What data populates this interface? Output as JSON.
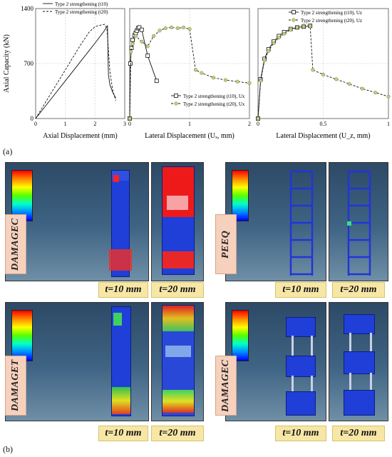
{
  "fig_labels": {
    "a": "(a)",
    "b": "(b)"
  },
  "fea_labels": {
    "damagec": "DAMAGEC",
    "peeq": "PEEQ",
    "damaget": "DAMAGET",
    "damagec2": "DAMAGEC"
  },
  "thickness_labels": {
    "t10": "t=10 mm",
    "t20": "t=20 mm"
  },
  "colors": {
    "frame": "#4a5a9c",
    "fea_bg": "#3f6484",
    "label_bg": "#f6d1be",
    "t_bg": "#f7e7a6",
    "marker_yellow": "#c9d36a"
  },
  "chart_data": [
    {
      "type": "line",
      "ylabel": "Axial Capacity (kN)",
      "xlabel": "Axial Displacement (mm)",
      "xlim": [
        0,
        3
      ],
      "ylim": [
        0,
        1400
      ],
      "xticks": [
        "0",
        "1",
        "2",
        "3"
      ],
      "yticks": [
        "0",
        "700",
        "1400"
      ],
      "series": [
        {
          "name": "Type 2 strengthening (t10)",
          "style": "solid",
          "x": [
            0,
            0.5,
            1.0,
            1.5,
            2.0,
            2.3,
            2.42,
            2.45,
            2.5,
            2.6,
            2.7
          ],
          "y": [
            0,
            240,
            480,
            720,
            960,
            1110,
            1180,
            560,
            430,
            330,
            260
          ]
        },
        {
          "name": "Type 2 strengthening (t20)",
          "style": "dashed",
          "x": [
            0,
            0.5,
            1.0,
            1.5,
            1.8,
            2.0,
            2.2,
            2.32,
            2.4,
            2.5,
            2.6,
            2.7
          ],
          "y": [
            0,
            310,
            620,
            930,
            1100,
            1170,
            1190,
            1200,
            1150,
            600,
            350,
            230
          ]
        }
      ]
    },
    {
      "type": "line",
      "xlabel": "Lateral Displacement (Uₓ, mm)",
      "xlim": [
        0,
        2
      ],
      "ylim": [
        0,
        1400
      ],
      "xticks": [
        "0",
        "1",
        "2"
      ],
      "series": [
        {
          "name": "Type 2 strengthening (t10), Ux",
          "marker": "square",
          "x": [
            0,
            0.01,
            0.03,
            0.05,
            0.08,
            0.1,
            0.12,
            0.14,
            0.16,
            0.2,
            0.3,
            0.45
          ],
          "y": [
            0,
            700,
            900,
            1000,
            1060,
            1090,
            1120,
            1150,
            1160,
            1130,
            800,
            480
          ]
        },
        {
          "name": "Type 2 strengthening (t20), Ux",
          "marker": "circle-yellow",
          "x": [
            0,
            0.02,
            0.05,
            0.1,
            0.2,
            0.3,
            0.4,
            0.5,
            0.6,
            0.7,
            0.8,
            0.9,
            1.0,
            1.1,
            1.2,
            1.4,
            1.6,
            1.8,
            2.0
          ],
          "y": [
            0,
            850,
            950,
            1050,
            980,
            920,
            1050,
            1120,
            1150,
            1160,
            1150,
            1160,
            1140,
            620,
            580,
            520,
            490,
            470,
            450
          ]
        }
      ]
    },
    {
      "type": "line",
      "xlabel": "Lateral Displacement (U_z, mm)",
      "xlim": [
        0,
        1
      ],
      "ylim": [
        0,
        1400
      ],
      "xticks": [
        "0",
        "0.5",
        "1"
      ],
      "series": [
        {
          "name": "Type 2 strengthening (t10), Uz",
          "marker": "square",
          "x": [
            0,
            0.02,
            0.05,
            0.08,
            0.12,
            0.16,
            0.2,
            0.25,
            0.3,
            0.35,
            0.4
          ],
          "y": [
            0,
            500,
            760,
            880,
            980,
            1050,
            1100,
            1140,
            1160,
            1170,
            1180
          ]
        },
        {
          "name": "Type 2 strengthening (t20), Uz",
          "marker": "circle-yellow",
          "x": [
            0,
            0.02,
            0.05,
            0.08,
            0.12,
            0.16,
            0.2,
            0.25,
            0.3,
            0.35,
            0.4,
            0.42,
            0.5,
            0.6,
            0.7,
            0.8,
            0.9,
            1.0
          ],
          "y": [
            0,
            480,
            740,
            860,
            960,
            1030,
            1080,
            1130,
            1160,
            1170,
            1175,
            620,
            560,
            500,
            440,
            380,
            330,
            280
          ]
        }
      ]
    }
  ]
}
